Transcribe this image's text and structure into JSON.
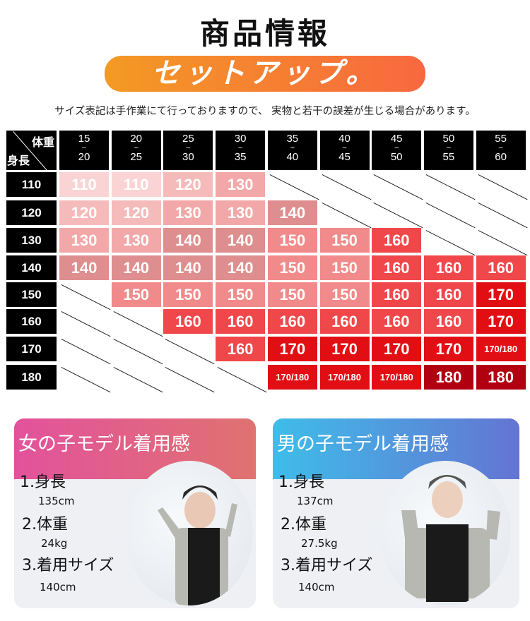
{
  "title": "商品情報",
  "banner": "セットアップ。",
  "note": "サイズ表記は手作業にて行っておりますので、 実物と若干の誤差が生じる場合があります。",
  "size_table": {
    "corner_top": "体重",
    "corner_bottom": "身長",
    "weight_ranges": [
      [
        "15",
        "~",
        "20"
      ],
      [
        "20",
        "~",
        "25"
      ],
      [
        "25",
        "~",
        "30"
      ],
      [
        "30",
        "~",
        "35"
      ],
      [
        "35",
        "~",
        "40"
      ],
      [
        "40",
        "~",
        "45"
      ],
      [
        "45",
        "~",
        "50"
      ],
      [
        "50",
        "~",
        "55"
      ],
      [
        "55",
        "~",
        "60"
      ]
    ],
    "heights": [
      "110",
      "120",
      "130",
      "140",
      "150",
      "160",
      "170",
      "180"
    ],
    "rows": [
      [
        "110",
        "110",
        "120",
        "130",
        null,
        null,
        null,
        null,
        null
      ],
      [
        "120",
        "120",
        "130",
        "130",
        "140",
        null,
        null,
        null,
        null
      ],
      [
        "130",
        "130",
        "140",
        "140",
        "150",
        "150",
        "160",
        null,
        null
      ],
      [
        "140",
        "140",
        "140",
        "140",
        "150",
        "150",
        "160",
        "160",
        "160"
      ],
      [
        null,
        "150",
        "150",
        "150",
        "150",
        "150",
        "160",
        "160",
        "170"
      ],
      [
        null,
        null,
        "160",
        "160",
        "160",
        "160",
        "160",
        "160",
        "170"
      ],
      [
        null,
        null,
        null,
        "160",
        "170",
        "170",
        "170",
        "170",
        "170/180"
      ],
      [
        null,
        null,
        null,
        null,
        "170/180",
        "170/180",
        "170/180",
        "180",
        "180"
      ]
    ],
    "value_colors": {
      "110": "#fad4d4",
      "120": "#f5baba",
      "130": "#f2a8a8",
      "140": "#de8e8e",
      "150": "#f18a8a",
      "160": "#f0474b",
      "170": "#e10f14",
      "170/180": "#e10f14",
      "180": "#b1000f"
    }
  },
  "girl": {
    "header": "女の子モデル着用感",
    "colors": [
      "#e2529c",
      "#e07270"
    ],
    "items": [
      {
        "label": "1.身長",
        "value": "135cm"
      },
      {
        "label": "2.体重",
        "value": "24kg"
      },
      {
        "label": "3.着用サイズ",
        "value": "140cm"
      }
    ]
  },
  "boy": {
    "header": "男の子モデル着用感",
    "colors": [
      "#3fbde9",
      "#6474d2"
    ],
    "items": [
      {
        "label": "1.身長",
        "value": "137cm"
      },
      {
        "label": "2.体重",
        "value": "27.5kg"
      },
      {
        "label": "3.着用サイズ",
        "value": "140cm"
      }
    ]
  }
}
